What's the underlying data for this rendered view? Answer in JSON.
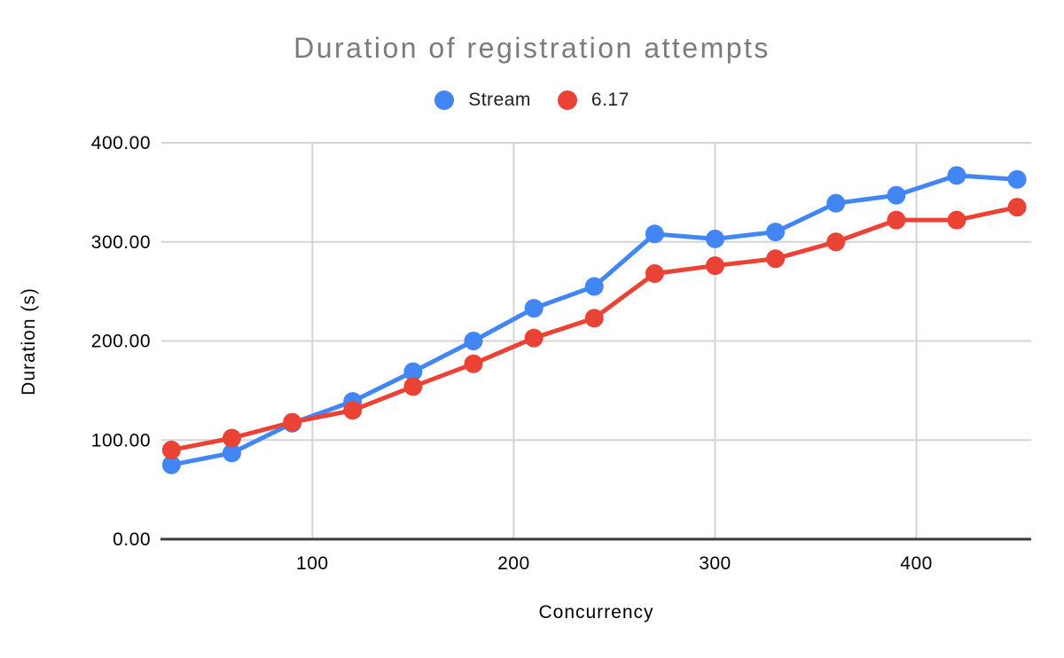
{
  "chart_data": {
    "type": "line",
    "title": "Duration of registration attempts",
    "xlabel": "Concurrency",
    "ylabel": "Duration (s)",
    "legend_position": "top",
    "grid": true,
    "x": [
      30,
      60,
      90,
      120,
      150,
      180,
      210,
      240,
      270,
      300,
      330,
      360,
      390,
      420,
      450
    ],
    "series": [
      {
        "name": "Stream",
        "color": "#4285F4",
        "values": [
          75,
          87,
          117,
          139,
          169,
          200,
          233,
          255,
          308,
          303,
          310,
          339,
          347,
          367,
          363
        ]
      },
      {
        "name": "6.17",
        "color": "#EA4335",
        "values": [
          90,
          102,
          118,
          130,
          154,
          177,
          203,
          223,
          268,
          276,
          283,
          300,
          322,
          322,
          335
        ]
      }
    ],
    "xlim": [
      25,
      457
    ],
    "ylim": [
      0,
      400
    ],
    "x_ticks": [
      {
        "value": 100,
        "label": "100"
      },
      {
        "value": 200,
        "label": "200"
      },
      {
        "value": 300,
        "label": "300"
      },
      {
        "value": 400,
        "label": "400"
      }
    ],
    "y_ticks": [
      {
        "value": 0,
        "label": "0.00"
      },
      {
        "value": 100,
        "label": "100.00"
      },
      {
        "value": 200,
        "label": "200.00"
      },
      {
        "value": 300,
        "label": "300.00"
      },
      {
        "value": 400,
        "label": "400.00"
      }
    ]
  },
  "colors": {
    "title": "#7b7b7b",
    "gridline": "#d4d4d4",
    "axis_line": "#3c3c3c",
    "tick_text": "#000000",
    "legend_text": "#1f1f1f",
    "background": "#ffffff"
  }
}
